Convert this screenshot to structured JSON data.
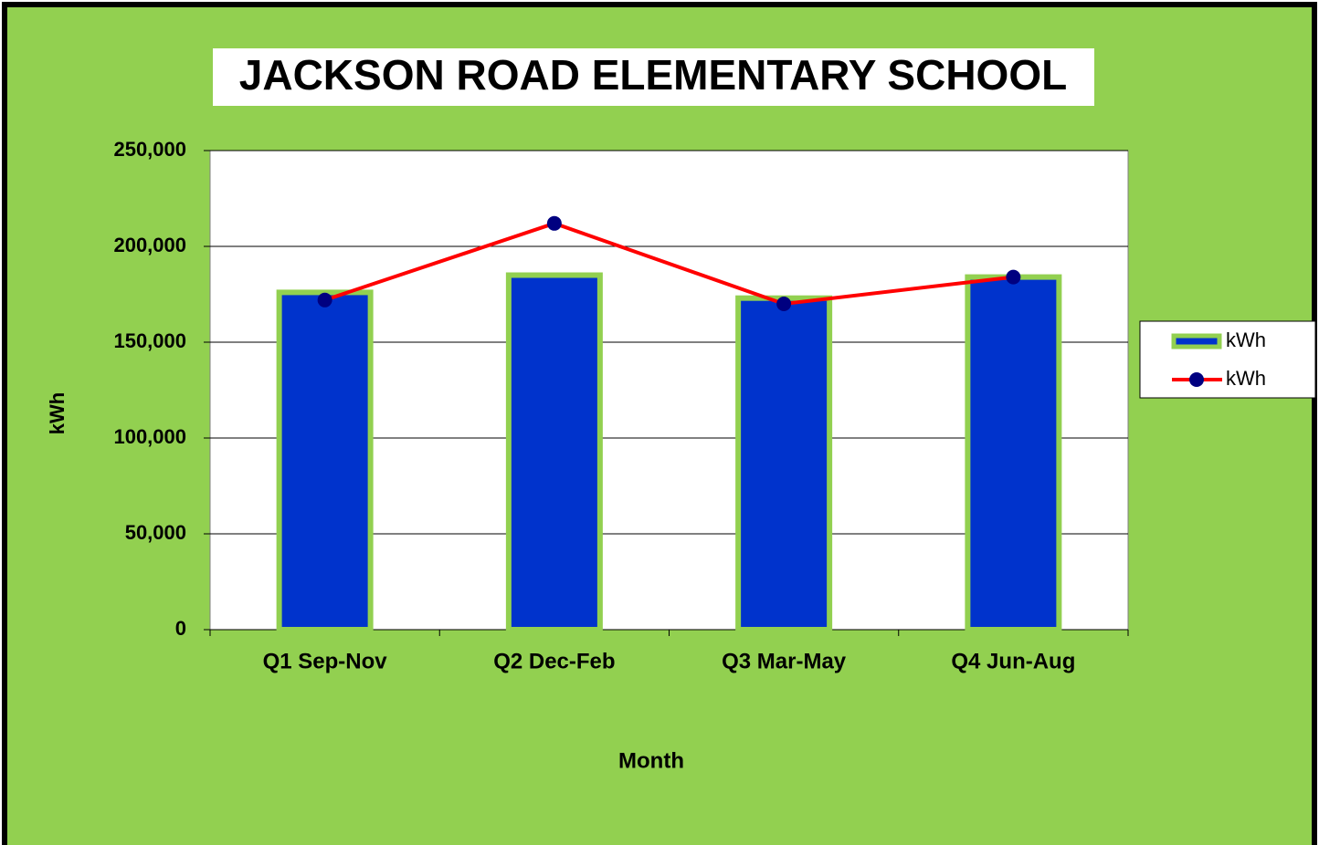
{
  "chart_data": {
    "type": "bar",
    "title": "JACKSON ROAD ELEMENTARY SCHOOL",
    "x_label": "Month",
    "y_label": "kWh",
    "categories": [
      "Q1 Sep-Nov",
      "Q2 Dec-Feb",
      "Q3 Mar-May",
      "Q4 Jun-Aug"
    ],
    "series": [
      {
        "name": "kWh",
        "type": "bar",
        "color": "#0033cc",
        "values": [
          176000,
          185000,
          173000,
          184000
        ]
      },
      {
        "name": "kWh",
        "type": "line",
        "color": "#ff0000",
        "marker_color": "#000080",
        "values": [
          172000,
          212000,
          170000,
          184000
        ]
      }
    ],
    "ylim": [
      0,
      250000
    ],
    "yticks": [
      0,
      {
        "value": 50000,
        "label": "50,000"
      },
      {
        "value": 100000,
        "label": "100,000"
      },
      {
        "value": 150000,
        "label": "150,000"
      },
      {
        "value": 200000,
        "label": "200,000"
      },
      {
        "value": 250000,
        "label": "250,000"
      }
    ],
    "grid": true,
    "legend": "right"
  }
}
